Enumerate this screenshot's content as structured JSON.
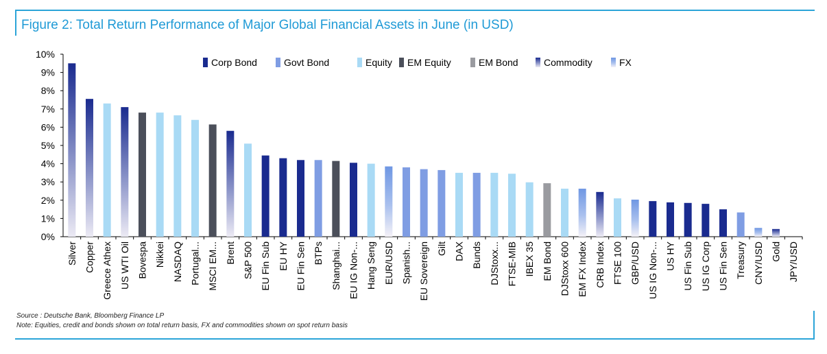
{
  "title": "Figure 2: Total Return Performance of Major Global Financial Assets in June (in USD)",
  "source": "Source : Deutsche Bank, Bloomberg Finance LP",
  "note": "Note: Equities, credit and bonds shown on total return basis, FX and commodities shown on spot return basis",
  "colors": {
    "Corp Bond": "#1a2b8f",
    "Govt Bond": "#7f9de3",
    "Equity": "#a9daf5",
    "EM Equity": "#4b4f5a",
    "EM Bond": "#9a9ba0",
    "Commodity": "#1a2b8f",
    "FX": "#6f97e3"
  },
  "chart_data": {
    "type": "bar",
    "ylim": [
      0,
      10
    ],
    "yticks": [
      "0%",
      "1%",
      "2%",
      "3%",
      "4%",
      "5%",
      "6%",
      "7%",
      "8%",
      "9%",
      "10%"
    ],
    "legend": [
      "Corp Bond",
      "Govt Bond",
      "Equity",
      "EM Equity",
      "EM Bond",
      "Commodity",
      "FX"
    ],
    "legend_position": "top",
    "categories": [
      "Silver",
      "Copper",
      "Greece Athex",
      "US WTI Oil",
      "Bovespa",
      "Nikkei",
      "NASDAQ",
      "Portugal...",
      "MSCI EM...",
      "Brent",
      "S&P 500",
      "EU Fin Sub",
      "EU HY",
      "EU Fin Sen",
      "BTPs",
      "Shanghai...",
      "EU IG Non-...",
      "Hang Seng",
      "EUR/USD",
      "Spanish...",
      "EU Sovereign",
      "Gilt",
      "DAX",
      "Bunds",
      "DJStoxx...",
      "FTSE-MIB",
      "IBEX 35",
      "EM Bond",
      "DJStoxx 600",
      "EM FX Index",
      "CRB Index",
      "FTSE 100",
      "GBP/USD",
      "US IG Non-...",
      "US HY",
      "US Fin Sub",
      "US IG Corp",
      "US Fin Sen",
      "Treasury",
      "CNY/USD",
      "Gold",
      "JPY/USD"
    ],
    "values": [
      9.5,
      7.55,
      7.3,
      7.1,
      6.8,
      6.8,
      6.65,
      6.4,
      6.15,
      5.8,
      5.1,
      4.45,
      4.3,
      4.2,
      4.2,
      4.15,
      4.05,
      4.0,
      3.85,
      3.8,
      3.7,
      3.65,
      3.5,
      3.5,
      3.5,
      3.45,
      2.98,
      2.93,
      2.63,
      2.63,
      2.45,
      2.1,
      2.03,
      1.95,
      1.88,
      1.85,
      1.8,
      1.5,
      1.33,
      0.48,
      0.42,
      0.0
    ],
    "asset_class": [
      "Commodity",
      "Commodity",
      "Equity",
      "Commodity",
      "EM Equity",
      "Equity",
      "Equity",
      "Equity",
      "EM Equity",
      "Commodity",
      "Equity",
      "Corp Bond",
      "Corp Bond",
      "Corp Bond",
      "Govt Bond",
      "EM Equity",
      "Corp Bond",
      "Equity",
      "FX",
      "Govt Bond",
      "Govt Bond",
      "Govt Bond",
      "Equity",
      "Govt Bond",
      "Equity",
      "Equity",
      "Equity",
      "EM Bond",
      "Equity",
      "FX",
      "Commodity",
      "Equity",
      "FX",
      "Corp Bond",
      "Corp Bond",
      "Corp Bond",
      "Corp Bond",
      "Corp Bond",
      "Govt Bond",
      "FX",
      "Commodity",
      "FX"
    ]
  }
}
